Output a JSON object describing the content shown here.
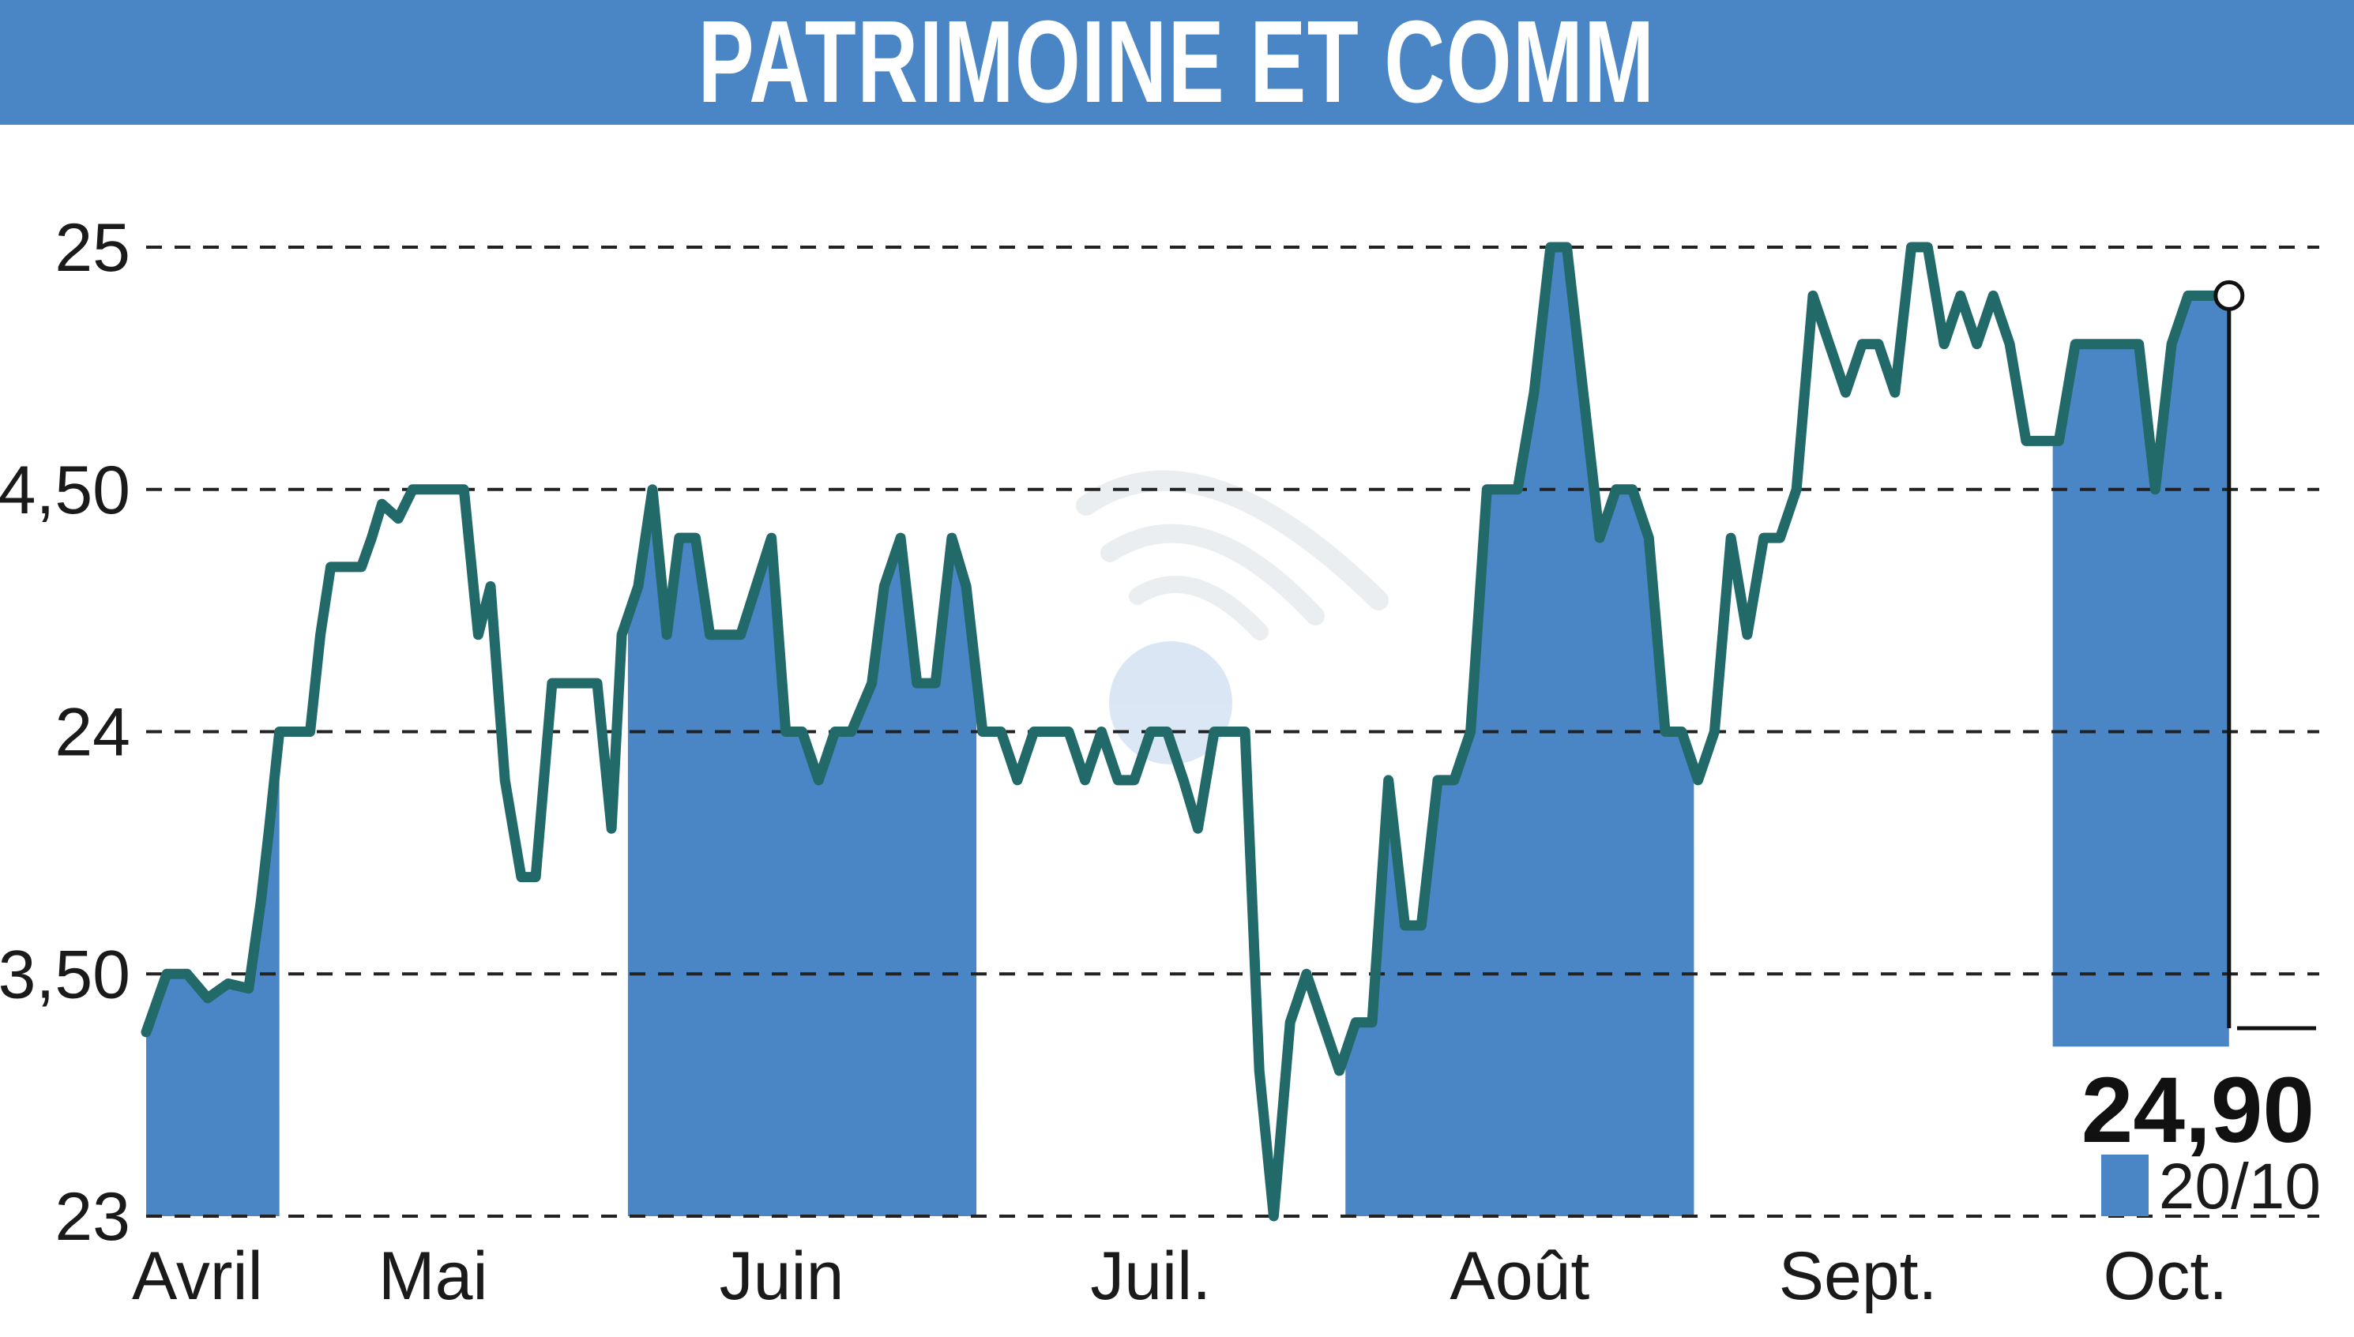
{
  "title": "PATRIMOINE ET COMM",
  "last_value_label": "24,90",
  "last_date_label": "20/10",
  "colors": {
    "header_bg": "#4a86c5",
    "band_fill": "#4a86c5",
    "line": "#22696a",
    "grid": "#222222",
    "watermark": "#9aa8b4"
  },
  "chart_data": {
    "type": "line",
    "title": "PATRIMOINE ET COMM",
    "xlabel": "",
    "ylabel": "",
    "ylim": [
      23,
      25.1
    ],
    "grid": "horizontal dashed",
    "y_ticks": [
      {
        "value": 25,
        "label": "25"
      },
      {
        "value": 24.5,
        "label": "24,50"
      },
      {
        "value": 24,
        "label": "24"
      },
      {
        "value": 23.5,
        "label": "23,50"
      },
      {
        "value": 23,
        "label": "23"
      }
    ],
    "month_labels": [
      "Avril",
      "Mai",
      "Juin",
      "Juil.",
      "Août",
      "Sept.",
      "Oct."
    ],
    "month_label_positions": [
      2.5,
      14,
      31,
      49,
      67,
      83.5,
      98.5
    ],
    "shaded_months": [
      {
        "month": "Avril",
        "x_start": 0,
        "x_end": 6.5
      },
      {
        "month": "Juin",
        "x_start": 23.5,
        "x_end": 40.5
      },
      {
        "month": "Août",
        "x_start": 58.5,
        "x_end": 75.5
      },
      {
        "month": "Oct.",
        "x_start": 93,
        "x_end": 106
      }
    ],
    "x_range": [
      0,
      106
    ],
    "series": [
      {
        "values": [
          [
            0,
            23.38
          ],
          [
            1,
            23.5
          ],
          [
            2,
            23.5
          ],
          [
            3,
            23.45
          ],
          [
            4,
            23.48
          ],
          [
            5,
            23.47
          ],
          [
            5.6,
            23.65
          ],
          [
            6,
            23.8
          ],
          [
            6.5,
            24.0
          ],
          [
            8,
            24.0
          ],
          [
            8.5,
            24.2
          ],
          [
            9,
            24.34
          ],
          [
            10.5,
            24.34
          ],
          [
            11,
            24.4
          ],
          [
            11.5,
            24.47
          ],
          [
            12.3,
            24.44
          ],
          [
            13,
            24.5
          ],
          [
            15.5,
            24.5
          ],
          [
            16.2,
            24.2
          ],
          [
            16.8,
            24.3
          ],
          [
            17.5,
            23.9
          ],
          [
            18.3,
            23.7
          ],
          [
            19,
            23.7
          ],
          [
            19.8,
            24.1
          ],
          [
            22,
            24.1
          ],
          [
            22.7,
            23.8
          ],
          [
            23.2,
            24.2
          ],
          [
            24,
            24.3
          ],
          [
            24.7,
            24.5
          ],
          [
            25.4,
            24.2
          ],
          [
            26,
            24.4
          ],
          [
            26.8,
            24.4
          ],
          [
            27.5,
            24.2
          ],
          [
            29,
            24.2
          ],
          [
            30.5,
            24.4
          ],
          [
            31.2,
            24.0
          ],
          [
            32,
            24.0
          ],
          [
            32.8,
            23.9
          ],
          [
            33.6,
            24.0
          ],
          [
            34.4,
            24.0
          ],
          [
            35.4,
            24.1
          ],
          [
            36,
            24.3
          ],
          [
            36.8,
            24.4
          ],
          [
            37.6,
            24.1
          ],
          [
            38.5,
            24.1
          ],
          [
            39.3,
            24.4
          ],
          [
            40,
            24.3
          ],
          [
            40.8,
            24.0
          ],
          [
            41.7,
            24.0
          ],
          [
            42.5,
            23.9
          ],
          [
            43.3,
            24.0
          ],
          [
            45,
            24.0
          ],
          [
            45.8,
            23.9
          ],
          [
            46.6,
            24.0
          ],
          [
            47.4,
            23.9
          ],
          [
            48.2,
            23.9
          ],
          [
            49,
            24.0
          ],
          [
            49.8,
            24.0
          ],
          [
            50.6,
            23.9
          ],
          [
            51.3,
            23.8
          ],
          [
            52.1,
            24.0
          ],
          [
            53.6,
            24.0
          ],
          [
            54.3,
            23.3
          ],
          [
            55,
            23.0
          ],
          [
            55.8,
            23.4
          ],
          [
            56.6,
            23.5
          ],
          [
            57.4,
            23.4
          ],
          [
            58.2,
            23.3
          ],
          [
            59,
            23.4
          ],
          [
            59.8,
            23.4
          ],
          [
            60.6,
            23.9
          ],
          [
            61.4,
            23.6
          ],
          [
            62.2,
            23.6
          ],
          [
            63,
            23.9
          ],
          [
            63.8,
            23.9
          ],
          [
            64.6,
            24.0
          ],
          [
            65.4,
            24.5
          ],
          [
            66.9,
            24.5
          ],
          [
            67.7,
            24.7
          ],
          [
            68.5,
            25.0
          ],
          [
            69.3,
            25.0
          ],
          [
            70.1,
            24.7
          ],
          [
            70.9,
            24.4
          ],
          [
            71.7,
            24.5
          ],
          [
            72.5,
            24.5
          ],
          [
            73.3,
            24.4
          ],
          [
            74.1,
            24.0
          ],
          [
            74.9,
            24.0
          ],
          [
            75.7,
            23.9
          ],
          [
            76.5,
            24.0
          ],
          [
            77.3,
            24.4
          ],
          [
            78.1,
            24.2
          ],
          [
            78.9,
            24.4
          ],
          [
            79.7,
            24.4
          ],
          [
            80.5,
            24.5
          ],
          [
            81.3,
            24.9
          ],
          [
            82.1,
            24.8
          ],
          [
            82.9,
            24.7
          ],
          [
            83.7,
            24.8
          ],
          [
            84.5,
            24.8
          ],
          [
            85.3,
            24.7
          ],
          [
            86.1,
            25.0
          ],
          [
            86.9,
            25.0
          ],
          [
            87.7,
            24.8
          ],
          [
            88.5,
            24.9
          ],
          [
            89.3,
            24.8
          ],
          [
            90.1,
            24.9
          ],
          [
            90.9,
            24.8
          ],
          [
            91.7,
            24.6
          ],
          [
            93.3,
            24.6
          ],
          [
            94.1,
            24.8
          ],
          [
            97.2,
            24.8
          ],
          [
            98,
            24.5
          ],
          [
            98.8,
            24.8
          ],
          [
            99.6,
            24.9
          ],
          [
            101.6,
            24.9
          ]
        ]
      }
    ]
  }
}
